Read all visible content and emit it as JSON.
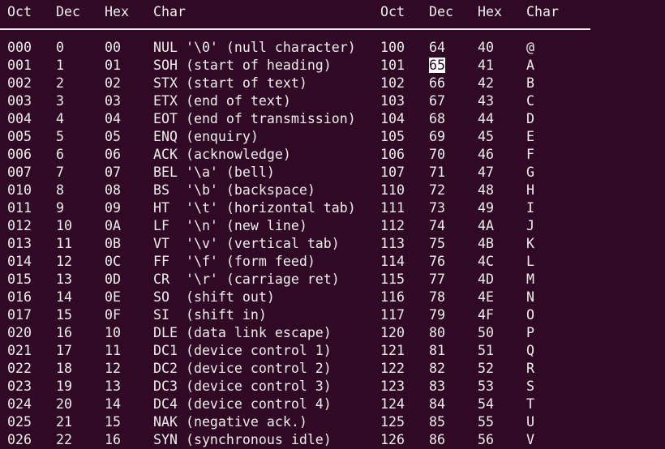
{
  "terminal": {
    "background": "#300a24",
    "foreground": "#eeeeec",
    "headers": [
      "Oct",
      "Dec",
      "Hex",
      "Char",
      "Oct",
      "Dec",
      "Hex",
      "Char"
    ],
    "cursor": {
      "row": 1,
      "column": "right_dec",
      "text": "65"
    },
    "rows": [
      {
        "left": [
          "000",
          "0",
          "00",
          "NUL '\\0' (null character)"
        ],
        "right": [
          "100",
          "64",
          "40",
          "@"
        ]
      },
      {
        "left": [
          "001",
          "1",
          "01",
          "SOH (start of heading)"
        ],
        "right": [
          "101",
          "65",
          "41",
          "A"
        ]
      },
      {
        "left": [
          "002",
          "2",
          "02",
          "STX (start of text)"
        ],
        "right": [
          "102",
          "66",
          "42",
          "B"
        ]
      },
      {
        "left": [
          "003",
          "3",
          "03",
          "ETX (end of text)"
        ],
        "right": [
          "103",
          "67",
          "43",
          "C"
        ]
      },
      {
        "left": [
          "004",
          "4",
          "04",
          "EOT (end of transmission)"
        ],
        "right": [
          "104",
          "68",
          "44",
          "D"
        ]
      },
      {
        "left": [
          "005",
          "5",
          "05",
          "ENQ (enquiry)"
        ],
        "right": [
          "105",
          "69",
          "45",
          "E"
        ]
      },
      {
        "left": [
          "006",
          "6",
          "06",
          "ACK (acknowledge)"
        ],
        "right": [
          "106",
          "70",
          "46",
          "F"
        ]
      },
      {
        "left": [
          "007",
          "7",
          "07",
          "BEL '\\a' (bell)"
        ],
        "right": [
          "107",
          "71",
          "47",
          "G"
        ]
      },
      {
        "left": [
          "010",
          "8",
          "08",
          "BS  '\\b' (backspace)"
        ],
        "right": [
          "110",
          "72",
          "48",
          "H"
        ]
      },
      {
        "left": [
          "011",
          "9",
          "09",
          "HT  '\\t' (horizontal tab)"
        ],
        "right": [
          "111",
          "73",
          "49",
          "I"
        ]
      },
      {
        "left": [
          "012",
          "10",
          "0A",
          "LF  '\\n' (new line)"
        ],
        "right": [
          "112",
          "74",
          "4A",
          "J"
        ]
      },
      {
        "left": [
          "013",
          "11",
          "0B",
          "VT  '\\v' (vertical tab)"
        ],
        "right": [
          "113",
          "75",
          "4B",
          "K"
        ]
      },
      {
        "left": [
          "014",
          "12",
          "0C",
          "FF  '\\f' (form feed)"
        ],
        "right": [
          "114",
          "76",
          "4C",
          "L"
        ]
      },
      {
        "left": [
          "015",
          "13",
          "0D",
          "CR  '\\r' (carriage ret)"
        ],
        "right": [
          "115",
          "77",
          "4D",
          "M"
        ]
      },
      {
        "left": [
          "016",
          "14",
          "0E",
          "SO  (shift out)"
        ],
        "right": [
          "116",
          "78",
          "4E",
          "N"
        ]
      },
      {
        "left": [
          "017",
          "15",
          "0F",
          "SI  (shift in)"
        ],
        "right": [
          "117",
          "79",
          "4F",
          "O"
        ]
      },
      {
        "left": [
          "020",
          "16",
          "10",
          "DLE (data link escape)"
        ],
        "right": [
          "120",
          "80",
          "50",
          "P"
        ]
      },
      {
        "left": [
          "021",
          "17",
          "11",
          "DC1 (device control 1)"
        ],
        "right": [
          "121",
          "81",
          "51",
          "Q"
        ]
      },
      {
        "left": [
          "022",
          "18",
          "12",
          "DC2 (device control 2)"
        ],
        "right": [
          "122",
          "82",
          "52",
          "R"
        ]
      },
      {
        "left": [
          "023",
          "19",
          "13",
          "DC3 (device control 3)"
        ],
        "right": [
          "123",
          "83",
          "53",
          "S"
        ]
      },
      {
        "left": [
          "024",
          "20",
          "14",
          "DC4 (device control 4)"
        ],
        "right": [
          "124",
          "84",
          "54",
          "T"
        ]
      },
      {
        "left": [
          "025",
          "21",
          "15",
          "NAK (negative ack.)"
        ],
        "right": [
          "125",
          "85",
          "55",
          "U"
        ]
      },
      {
        "left": [
          "026",
          "22",
          "16",
          "SYN (synchronous idle)"
        ],
        "right": [
          "126",
          "86",
          "56",
          "V"
        ]
      }
    ]
  }
}
